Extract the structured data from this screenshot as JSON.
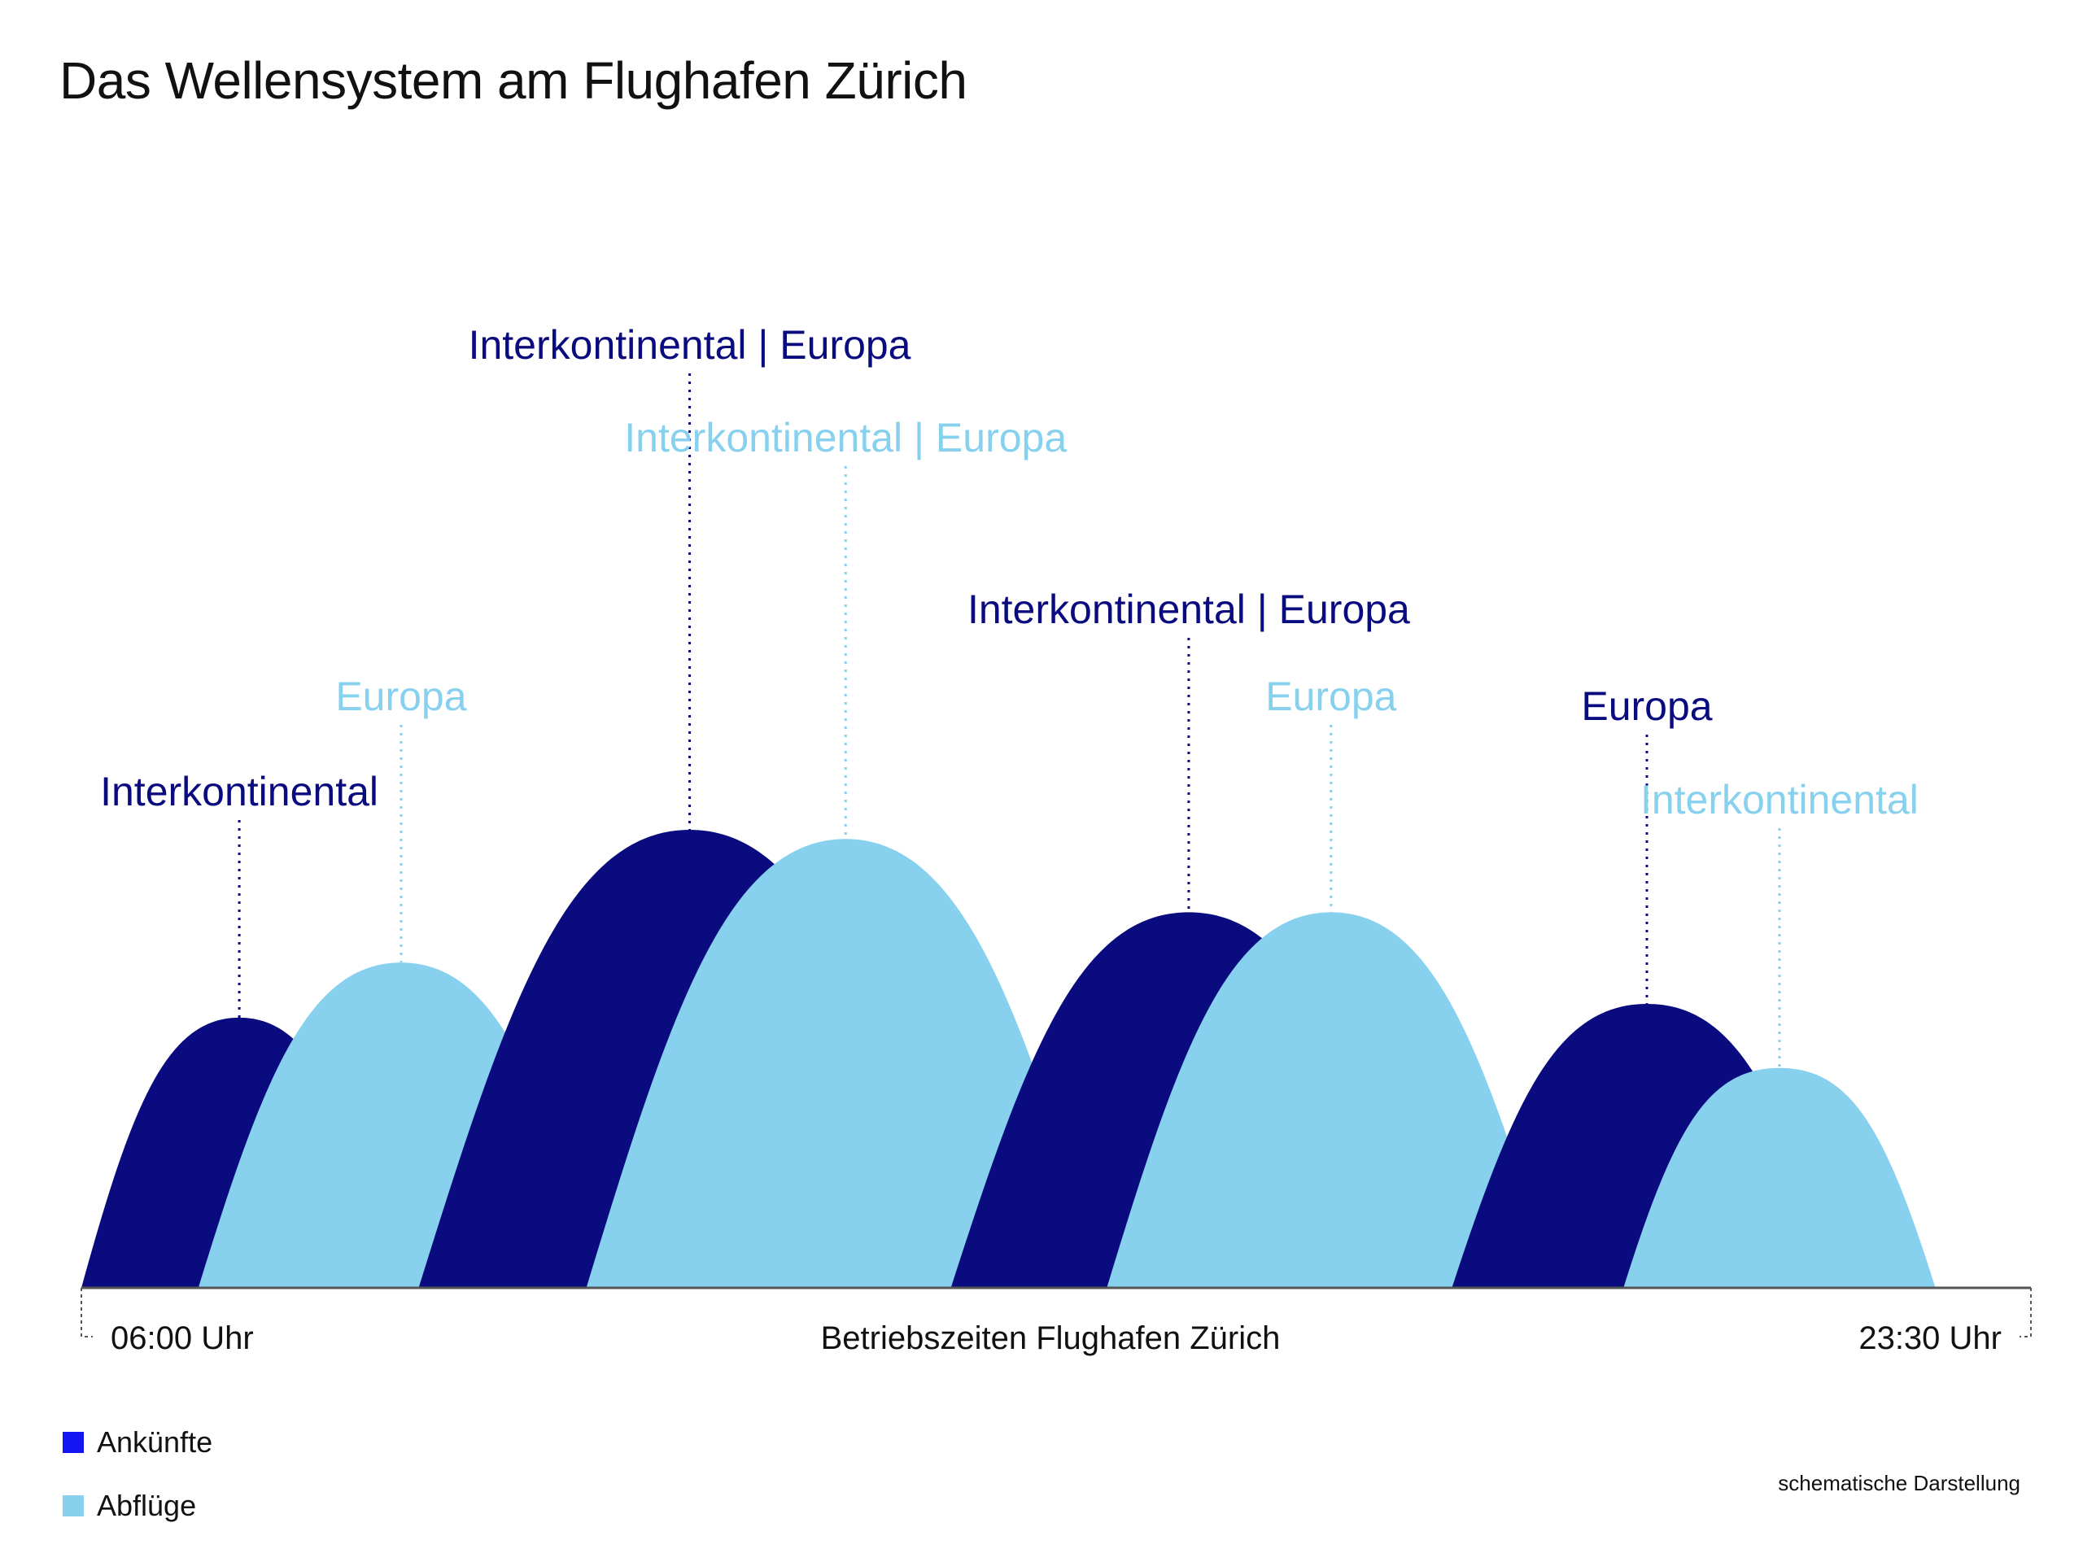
{
  "title": "Das Wellensystem am Flughafen Zürich",
  "colors": {
    "arrivals": "#0b0b80",
    "departures": "#87d1ef",
    "legend_arrivals": "#1414f0",
    "axis": "#555555"
  },
  "chart_data": {
    "type": "area",
    "x_start_label": "06:00 Uhr",
    "x_end_label": "23:30 Uhr",
    "xlabel": "Betriebszeiten Flughafen Zürich",
    "series": [
      {
        "name": "Ankünfte",
        "legend_label": "Ankünfte",
        "color": "#0b0b80"
      },
      {
        "name": "Abflüge",
        "legend_label": "Abflüge",
        "color": "#87d1ef"
      }
    ],
    "waves": [
      {
        "series": "Ankünfte",
        "label": "Interkontinental",
        "start": 0.0,
        "peak": 0.081,
        "end": 0.162,
        "height": 0.59
      },
      {
        "series": "Abflüge",
        "label": "Europa",
        "start": 0.06,
        "peak": 0.164,
        "end": 0.268,
        "height": 0.71
      },
      {
        "series": "Ankünfte",
        "label": "Interkontinental | Europa",
        "start": 0.173,
        "peak": 0.312,
        "end": 0.451,
        "height": 1.0
      },
      {
        "series": "Abflüge",
        "label": "Interkontinental | Europa",
        "start": 0.259,
        "peak": 0.392,
        "end": 0.525,
        "height": 0.98
      },
      {
        "series": "Ankünfte",
        "label": "Interkontinental | Europa",
        "start": 0.446,
        "peak": 0.568,
        "end": 0.69,
        "height": 0.82
      },
      {
        "series": "Abflüge",
        "label": "Europa",
        "start": 0.526,
        "peak": 0.641,
        "end": 0.756,
        "height": 0.82
      },
      {
        "series": "Ankünfte",
        "label": "Europa",
        "start": 0.703,
        "peak": 0.803,
        "end": 0.903,
        "height": 0.62
      },
      {
        "series": "Abflüge",
        "label": "Interkontinental",
        "start": 0.791,
        "peak": 0.871,
        "end": 0.951,
        "height": 0.48
      }
    ],
    "note": "schematische Darstellung"
  }
}
